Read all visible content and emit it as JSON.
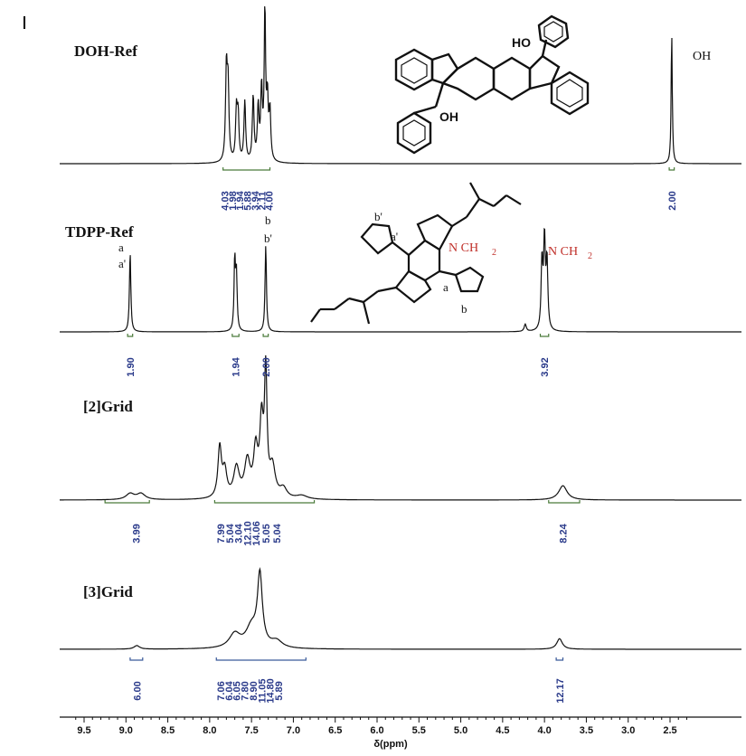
{
  "chart_data": {
    "type": "line",
    "xlabel": "δ(ppm)",
    "xlim": [
      9.6,
      2.2
    ],
    "x_ticks": [
      "9.5",
      "9.0",
      "8.5",
      "8.0",
      "7.5",
      "7.0",
      "6.5",
      "6.0",
      "5.5",
      "5.0",
      "4.5",
      "4.0",
      "3.5",
      "3.0",
      "2.5"
    ],
    "x_tick_values": [
      9.5,
      9.0,
      8.5,
      8.0,
      7.5,
      7.0,
      6.5,
      6.0,
      5.5,
      5.0,
      4.5,
      4.0,
      3.5,
      3.0,
      2.5
    ],
    "panels": [
      {
        "name": "DOH-Ref",
        "line_color": "#111111",
        "peaks": [
          {
            "x": 7.8,
            "h": 0.62,
            "w": 0.012
          },
          {
            "x": 7.78,
            "h": 0.5,
            "w": 0.012
          },
          {
            "x": 7.68,
            "h": 0.34,
            "w": 0.012
          },
          {
            "x": 7.66,
            "h": 0.3,
            "w": 0.012
          },
          {
            "x": 7.58,
            "h": 0.41,
            "w": 0.012
          },
          {
            "x": 7.48,
            "h": 0.44,
            "w": 0.012
          },
          {
            "x": 7.42,
            "h": 0.36,
            "w": 0.012
          },
          {
            "x": 7.38,
            "h": 0.48,
            "w": 0.012
          },
          {
            "x": 7.34,
            "h": 1.0,
            "w": 0.01
          },
          {
            "x": 7.31,
            "h": 0.4,
            "w": 0.012
          },
          {
            "x": 7.28,
            "h": 0.33,
            "w": 0.012
          },
          {
            "x": 2.48,
            "h": 0.88,
            "w": 0.008
          }
        ],
        "peak_labels": [
          "OH"
        ],
        "integrals": [
          "4.03",
          "1.98",
          "1.94",
          "5.88",
          "3.94",
          "2.11",
          "4.00",
          "2.00"
        ]
      },
      {
        "name": "TDPP-Ref",
        "line_color": "#111111",
        "peaks": [
          {
            "x": 8.95,
            "h": 0.88,
            "w": 0.01
          },
          {
            "x": 7.7,
            "h": 0.78,
            "w": 0.01
          },
          {
            "x": 7.68,
            "h": 0.6,
            "w": 0.01
          },
          {
            "x": 7.33,
            "h": 0.95,
            "w": 0.01
          },
          {
            "x": 4.03,
            "h": 0.75,
            "w": 0.012
          },
          {
            "x": 4.0,
            "h": 0.98,
            "w": 0.012
          },
          {
            "x": 3.97,
            "h": 0.75,
            "w": 0.012
          },
          {
            "x": 4.23,
            "h": 0.08,
            "w": 0.015
          }
        ],
        "peak_labels": [
          "a",
          "a'",
          "b",
          "b'",
          "N CH",
          "2"
        ],
        "structure_labels": [
          "b'",
          "a'",
          "N CH",
          "2",
          "a",
          "b"
        ],
        "integrals": [
          "1.90",
          "1.94",
          "2.00",
          "3.92"
        ]
      },
      {
        "name": "[2]Grid",
        "line_color": "#111111",
        "peaks": [
          {
            "x": 8.95,
            "h": 0.05,
            "w": 0.06
          },
          {
            "x": 8.82,
            "h": 0.05,
            "w": 0.06
          },
          {
            "x": 7.88,
            "h": 0.42,
            "w": 0.025
          },
          {
            "x": 7.82,
            "h": 0.22,
            "w": 0.03
          },
          {
            "x": 7.68,
            "h": 0.25,
            "w": 0.04
          },
          {
            "x": 7.55,
            "h": 0.3,
            "w": 0.04
          },
          {
            "x": 7.45,
            "h": 0.38,
            "w": 0.03
          },
          {
            "x": 7.38,
            "h": 0.6,
            "w": 0.025
          },
          {
            "x": 7.33,
            "h": 1.0,
            "w": 0.018
          },
          {
            "x": 7.25,
            "h": 0.25,
            "w": 0.04
          },
          {
            "x": 7.12,
            "h": 0.08,
            "w": 0.05
          },
          {
            "x": 6.9,
            "h": 0.03,
            "w": 0.08
          },
          {
            "x": 3.78,
            "h": 0.12,
            "w": 0.06
          }
        ],
        "integrals": [
          "3.99",
          "7.99",
          "5.04",
          "3.04",
          "12.10",
          "14.06",
          "5.05",
          "5.04",
          "8.24"
        ]
      },
      {
        "name": "[3]Grid",
        "line_color": "#111111",
        "peaks": [
          {
            "x": 8.87,
            "h": 0.05,
            "w": 0.04
          },
          {
            "x": 7.7,
            "h": 0.2,
            "w": 0.08
          },
          {
            "x": 7.5,
            "h": 0.28,
            "w": 0.08
          },
          {
            "x": 7.4,
            "h": 1.0,
            "w": 0.035
          },
          {
            "x": 7.2,
            "h": 0.1,
            "w": 0.08
          },
          {
            "x": 3.82,
            "h": 0.15,
            "w": 0.04
          }
        ],
        "integrals": [
          "6.00",
          "7.06",
          "6.04",
          "6.05",
          "7.80",
          "8.90",
          "11.05",
          "14.80",
          "5.89",
          "12.17"
        ]
      }
    ],
    "structure_labels_doh": [
      "HO",
      "OH"
    ]
  }
}
